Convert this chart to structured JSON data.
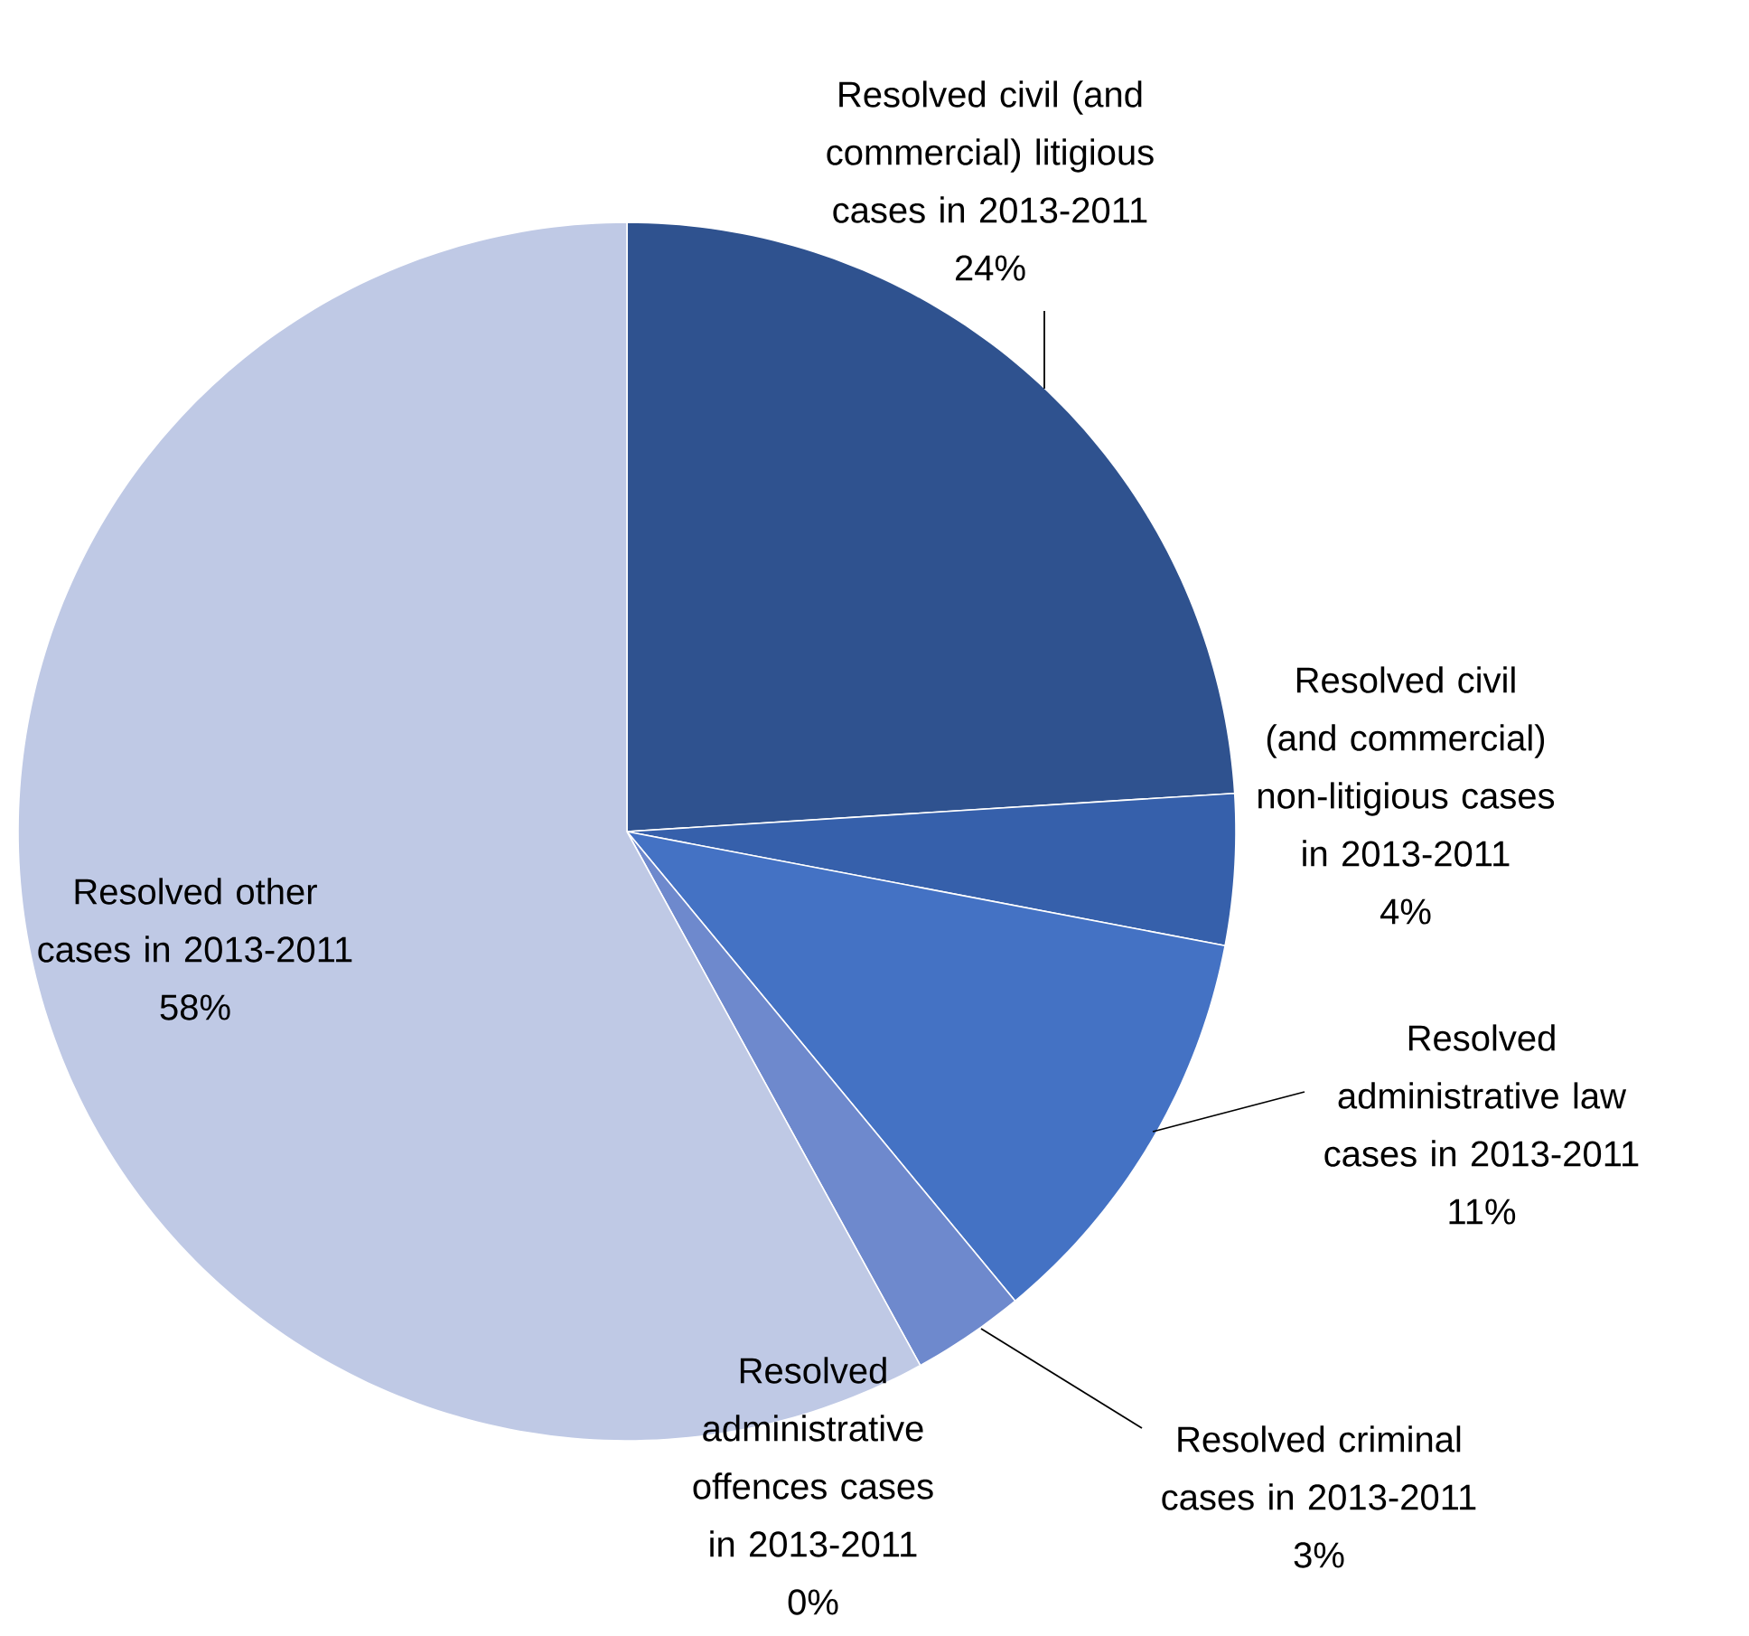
{
  "chart_data": {
    "type": "pie",
    "categories": [
      "Resolved civil (and commercial) litigious cases in 2013-2011",
      "Resolved civil (and commercial) non-litigious cases in 2013-2011",
      "Resolved administrative law cases in 2013-2011",
      "Resolved criminal cases in 2013-2011",
      "Resolved administrative offences cases in 2013-2011",
      "Resolved other cases in 2013-2011"
    ],
    "values": [
      24,
      4,
      11,
      3,
      0,
      58
    ],
    "value_labels": [
      "24%",
      "4%",
      "11%",
      "3%",
      "0%",
      "58%"
    ],
    "colors": [
      "#2f528f",
      "#3660ab",
      "#4472c4",
      "#6e89cd",
      "#a9b9e0",
      "#bfc9e5"
    ]
  }
}
